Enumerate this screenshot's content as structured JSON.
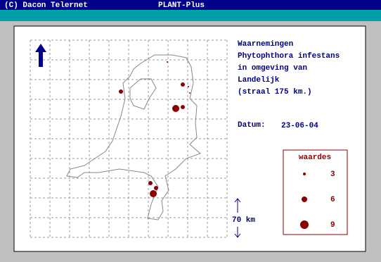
{
  "header": {
    "copyright": "(C) Dacon Telernet",
    "app": "PLANT-Plus"
  },
  "info": {
    "lines": [
      "Waarnemingen",
      "Phytophthora infestans",
      "in omgeving van",
      "Landelijk",
      "(straal 175 km.)"
    ],
    "date_label": "Datum:",
    "date": "23-06-04"
  },
  "legend": {
    "title": "waardes",
    "items": [
      3,
      6,
      9
    ]
  },
  "scale": {
    "label": "70 km"
  }
}
